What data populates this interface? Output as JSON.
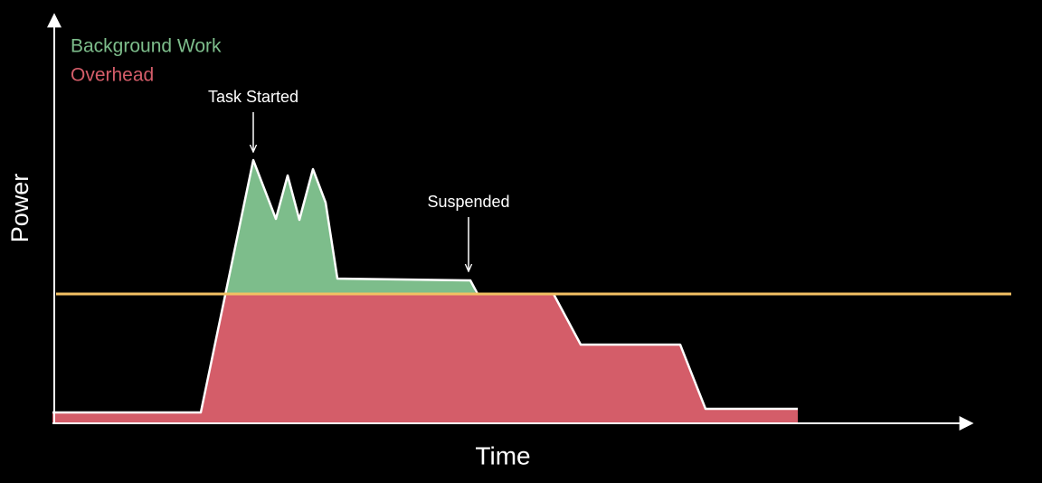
{
  "axes": {
    "y_label": "Power",
    "x_label": "Time"
  },
  "legend": [
    {
      "label": "Background Work"
    },
    {
      "label": "Overhead"
    }
  ],
  "annotations": [
    {
      "label": "Task Started"
    },
    {
      "label": "Suspended"
    }
  ]
}
